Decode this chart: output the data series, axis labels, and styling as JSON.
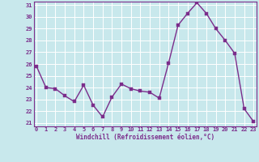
{
  "x": [
    0,
    1,
    2,
    3,
    4,
    5,
    6,
    7,
    8,
    9,
    10,
    11,
    12,
    13,
    14,
    15,
    16,
    17,
    18,
    19,
    20,
    21,
    22,
    23
  ],
  "y": [
    25.8,
    24.0,
    23.9,
    23.3,
    22.8,
    24.2,
    22.5,
    21.5,
    23.2,
    24.3,
    23.9,
    23.7,
    23.6,
    23.1,
    26.1,
    29.3,
    30.3,
    31.2,
    30.3,
    29.0,
    28.0,
    26.9,
    22.2,
    21.1
  ],
  "line_color": "#7b2d8b",
  "marker_color": "#7b2d8b",
  "bg_color": "#c8e8ec",
  "grid_color": "#ffffff",
  "xlabel": "Windchill (Refroidissement éolien,°C)",
  "xlabel_color": "#7b2d8b",
  "tick_color": "#7b2d8b",
  "spine_color": "#7b2d8b",
  "ylim": [
    21,
    31
  ],
  "yticks": [
    21,
    22,
    23,
    24,
    25,
    26,
    27,
    28,
    29,
    30,
    31
  ],
  "xticks": [
    0,
    1,
    2,
    3,
    4,
    5,
    6,
    7,
    8,
    9,
    10,
    11,
    12,
    13,
    14,
    15,
    16,
    17,
    18,
    19,
    20,
    21,
    22,
    23
  ],
  "marker_size": 2.5,
  "line_width": 1.0
}
